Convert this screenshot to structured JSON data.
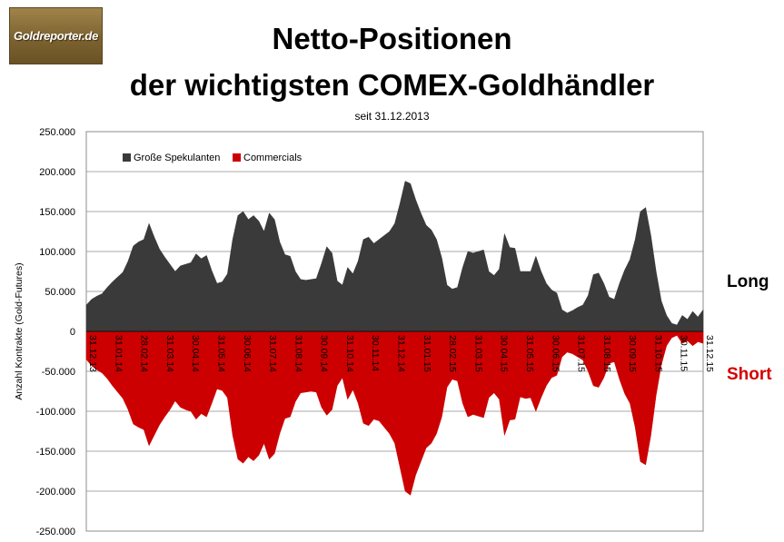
{
  "logo": {
    "text": "Goldreporter.de"
  },
  "chart_data": {
    "type": "area",
    "title": "Netto-Positionen",
    "title_line2": "der wichtigsten COMEX-Goldhändler",
    "subtitle": "seit 31.12.2013",
    "ylabel": "Anzahl Kontrakte  (Gold-Futures)",
    "ylim": [
      -250000,
      250000
    ],
    "y_ticks": [
      250000,
      200000,
      150000,
      100000,
      50000,
      0,
      -50000,
      -100000,
      -150000,
      -200000,
      -250000
    ],
    "y_tick_labels": [
      "250.000",
      "200.000",
      "150.000",
      "100.000",
      "50.000",
      "0",
      "-50.000",
      "-100.000",
      "-150.000",
      "-200.000",
      "-250.000"
    ],
    "x_tick_labels": [
      "31.12.13",
      "31.01.14",
      "28.02.14",
      "31.03.14",
      "30.04.14",
      "31.05.14",
      "30.06.14",
      "31.07.14",
      "31.08.14",
      "30.09.14",
      "31.10.14",
      "30.11.14",
      "31.12.14",
      "31.01.15",
      "28.02.15",
      "31.03.15",
      "30.04.15",
      "31.05.15",
      "30.06.15",
      "31.07.15",
      "31.08.15",
      "30.09.15",
      "31.10.15",
      "30.11.15",
      "31.12.15"
    ],
    "legend_position": "top-left",
    "grid": true,
    "side_labels": {
      "long": "Long",
      "short": "Short"
    },
    "series": [
      {
        "name": "Große Spekulanten",
        "color": "#3a3a3a",
        "values": [
          33000,
          40000,
          44000,
          47000,
          55000,
          62000,
          68000,
          74000,
          88000,
          107000,
          112000,
          115000,
          135000,
          118000,
          103000,
          93000,
          84000,
          75000,
          82000,
          84000,
          86000,
          97000,
          91000,
          95000,
          76000,
          60000,
          62000,
          72000,
          115000,
          145000,
          150000,
          140000,
          145000,
          138000,
          125000,
          148000,
          140000,
          112000,
          96000,
          94000,
          75000,
          65000,
          64000,
          65000,
          66000,
          85000,
          106000,
          98000,
          63000,
          58000,
          80000,
          72000,
          88000,
          115000,
          118000,
          110000,
          115000,
          120000,
          125000,
          135000,
          160000,
          188000,
          185000,
          165000,
          148000,
          133000,
          127000,
          115000,
          92000,
          58000,
          53000,
          55000,
          80000,
          100000,
          98000,
          100000,
          102000,
          75000,
          70000,
          78000,
          122000,
          105000,
          104000,
          75000,
          75000,
          75000,
          94000,
          75000,
          60000,
          52000,
          48000,
          27000,
          23000,
          26000,
          30000,
          33000,
          45000,
          71000,
          73000,
          60000,
          43000,
          40000,
          60000,
          77000,
          90000,
          115000,
          150000,
          155000,
          120000,
          75000,
          38000,
          20000,
          10000,
          8000,
          20000,
          15000,
          25000,
          18000,
          27000
        ]
      },
      {
        "name": "Commercials",
        "color": "#cc0000",
        "values": [
          -35000,
          -43000,
          -48000,
          -52000,
          -59000,
          -68000,
          -76000,
          -84000,
          -98000,
          -116000,
          -120000,
          -123000,
          -143000,
          -130000,
          -117000,
          -107000,
          -98000,
          -87000,
          -95000,
          -98000,
          -100000,
          -110000,
          -103000,
          -107000,
          -90000,
          -72000,
          -74000,
          -83000,
          -130000,
          -160000,
          -165000,
          -157000,
          -162000,
          -155000,
          -140000,
          -160000,
          -153000,
          -128000,
          -109000,
          -107000,
          -88000,
          -77000,
          -76000,
          -75000,
          -76000,
          -95000,
          -105000,
          -98000,
          -68000,
          -58000,
          -85000,
          -73000,
          -90000,
          -115000,
          -118000,
          -110000,
          -112000,
          -120000,
          -128000,
          -140000,
          -170000,
          -200000,
          -205000,
          -180000,
          -163000,
          -146000,
          -140000,
          -128000,
          -107000,
          -70000,
          -60000,
          -62000,
          -90000,
          -107000,
          -104000,
          -106000,
          -108000,
          -83000,
          -77000,
          -85000,
          -130000,
          -111000,
          -110000,
          -82000,
          -84000,
          -83000,
          -100000,
          -83000,
          -68000,
          -58000,
          -55000,
          -32000,
          -26000,
          -28000,
          -32000,
          -36000,
          -50000,
          -68000,
          -70000,
          -58000,
          -40000,
          -38000,
          -60000,
          -78000,
          -90000,
          -120000,
          -163000,
          -167000,
          -130000,
          -80000,
          -42000,
          -18000,
          -8000,
          -5000,
          -15000,
          -12000,
          -18000,
          -13000,
          -15000
        ]
      }
    ]
  }
}
